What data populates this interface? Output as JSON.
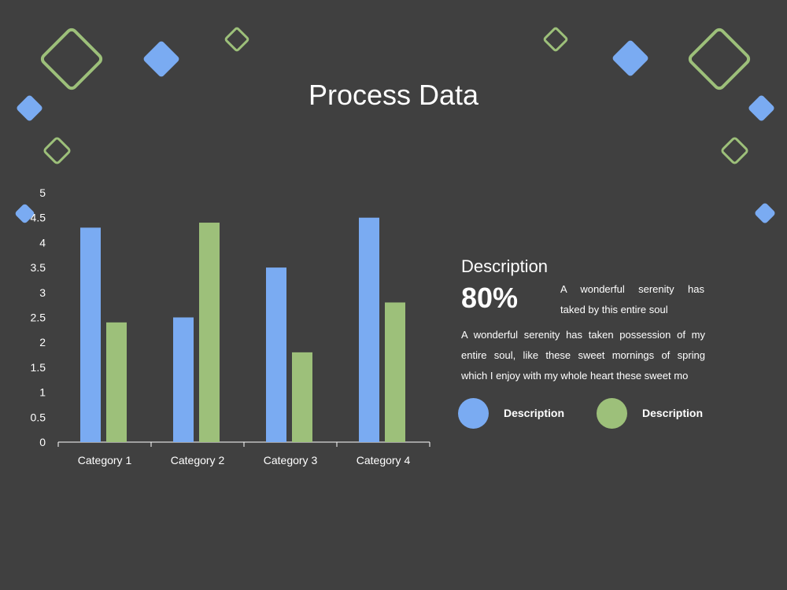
{
  "title": "Process Data",
  "colors": {
    "background": "#404040",
    "series_blue": "#7aabf2",
    "series_green": "#9dc07a",
    "text": "#ffffff"
  },
  "chart_data": {
    "type": "bar",
    "categories": [
      "Category 1",
      "Category 2",
      "Category 3",
      "Category 4"
    ],
    "series": [
      {
        "values": [
          4.3,
          2.5,
          3.5,
          4.5
        ],
        "color": "#7aabf2"
      },
      {
        "values": [
          2.4,
          4.4,
          1.8,
          2.8
        ],
        "color": "#9dc07a"
      }
    ],
    "ylim": [
      0,
      5
    ],
    "yticks": [
      "0",
      "0.5",
      "1",
      "1.5",
      "2",
      "2.5",
      "3",
      "3.5",
      "4",
      "4.5",
      "5"
    ],
    "grid": false,
    "legend": "none"
  },
  "panel": {
    "heading": "Description",
    "percent": "80%",
    "percent_text_lines": [
      "A wonderful serenity has",
      "taked by this entire soul"
    ],
    "paragraph_lines": [
      "A wonderful serenity has taken possession of my",
      "entire soul, like these sweet mornings of spring",
      "which I enjoy with my whole heart these sweet mo"
    ]
  },
  "legend": {
    "items": [
      {
        "label": "Description",
        "color": "#7aabf2"
      },
      {
        "label": "Description",
        "color": "#9dc07a"
      }
    ]
  }
}
